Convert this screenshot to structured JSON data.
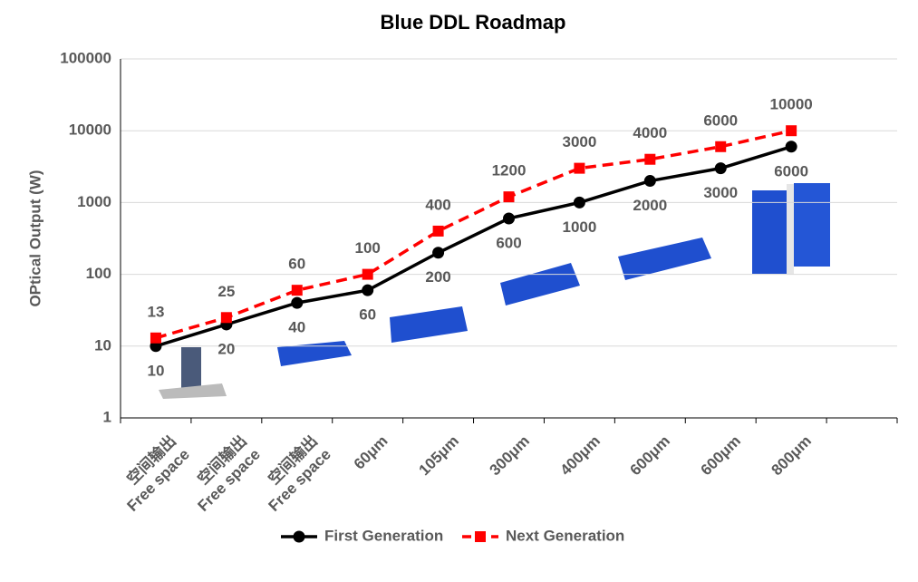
{
  "chart_data": {
    "type": "line",
    "title": "Blue DDL Roadmap",
    "y_label": "OPtical Output (W)",
    "categories": [
      "空间输出\nFree space",
      "空间输出\nFree space",
      "空间输出\nFree space",
      "60μm",
      "105μm",
      "300μm",
      "400μm",
      "600μm",
      "600μm",
      "800μm",
      null
    ],
    "series": [
      {
        "name": "First Generation",
        "color": "#000000",
        "marker": "circle",
        "dashed": false,
        "label_position": "below",
        "values": [
          10,
          20,
          40,
          60,
          200,
          600,
          1000,
          2000,
          3000,
          6000,
          null
        ]
      },
      {
        "name": "Next Generation",
        "color": "#ff0000",
        "marker": "square",
        "dashed": true,
        "label_position": "above",
        "values": [
          13,
          25,
          60,
          100,
          400,
          1200,
          3000,
          4000,
          6000,
          10000,
          null
        ]
      }
    ],
    "log_y": true,
    "ylim": [
      1,
      100000
    ],
    "yticks": [
      1,
      10,
      100,
      1000,
      10000,
      100000
    ],
    "grid": true,
    "legend": "bottom"
  }
}
